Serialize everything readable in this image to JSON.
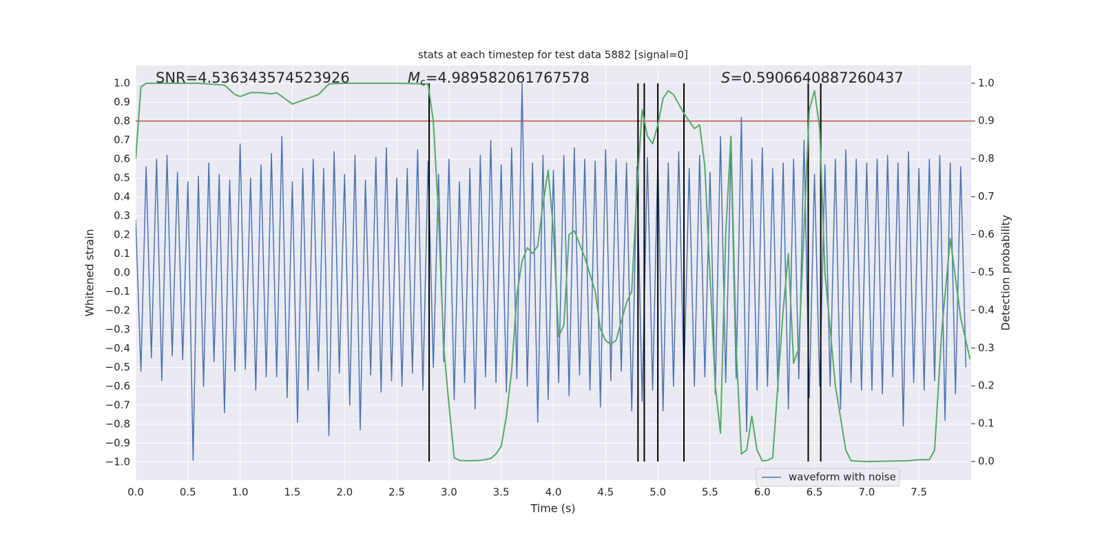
{
  "chart_data": {
    "type": "line",
    "title": "stats at each timestep for test data 5882 [signal=0]",
    "xlabel": "Time (s)",
    "ylabel": "Whitened strain",
    "y2label": "Detection probability",
    "annotations": [
      {
        "text": "SNR=4.536343574523926"
      },
      {
        "symbol": "M",
        "subscript": "c",
        "text": "=4.989582061767578"
      },
      {
        "symbol": "S",
        "text": "=0.5906640887260437"
      }
    ],
    "xlim": [
      0,
      8.0
    ],
    "ylim": [
      -1.095,
      1.095
    ],
    "y2lim": [
      -0.049,
      1.047
    ],
    "xticks": [
      {
        "value": 0,
        "label": "0.0"
      },
      0.5,
      {
        "value": 1,
        "label": "1.0"
      },
      1.5,
      {
        "value": 2,
        "label": "2.0"
      },
      2.5,
      {
        "value": 3,
        "label": "3.0"
      },
      3.5,
      {
        "value": 4,
        "label": "4.0"
      },
      4.5,
      {
        "value": 5,
        "label": "5.0"
      },
      5.5,
      {
        "value": 6,
        "label": "6.0"
      },
      6.5,
      {
        "value": 7,
        "label": "7.0"
      },
      7.5
    ],
    "yticks": [
      {
        "value": -1,
        "label": "−1.0"
      },
      {
        "value": -0.9,
        "label": "−0.9"
      },
      {
        "value": -0.8,
        "label": "−0.8"
      },
      {
        "value": -0.7,
        "label": "−0.7"
      },
      {
        "value": -0.6,
        "label": "−0.6"
      },
      {
        "value": -0.5,
        "label": "−0.5"
      },
      {
        "value": -0.4,
        "label": "−0.4"
      },
      {
        "value": -0.3,
        "label": "−0.3"
      },
      {
        "value": -0.2,
        "label": "−0.2"
      },
      {
        "value": -0.1,
        "label": "−0.1"
      },
      {
        "value": 0,
        "label": "0.0"
      },
      0.1,
      0.2,
      0.3,
      0.4,
      0.5,
      0.6,
      0.7,
      0.8,
      0.9,
      {
        "value": 1,
        "label": "1.0"
      }
    ],
    "y2ticks": [
      {
        "value": 0,
        "label": "0.0"
      },
      0.1,
      0.2,
      0.3,
      0.4,
      0.5,
      0.6,
      0.7,
      0.8,
      0.9,
      {
        "value": 1,
        "label": "1.0"
      }
    ],
    "grid": true,
    "legend": "lower right",
    "hline": {
      "value": 0.9,
      "axis": "y2",
      "color": "#c44e52"
    },
    "vlines": {
      "values": [
        2.81,
        4.81,
        4.87,
        5.0,
        5.25,
        6.44,
        6.56
      ],
      "color": "#000000"
    },
    "series": [
      {
        "name": "waveform with noise",
        "color": "#4c72b0",
        "axis": "y",
        "x": [
          0,
          0.05,
          0.1,
          0.15,
          0.2,
          0.25,
          0.3,
          0.35,
          0.4,
          0.45,
          0.5,
          0.55,
          0.6,
          0.65,
          0.7,
          0.75,
          0.8,
          0.85,
          0.9,
          0.95,
          1,
          1.05,
          1.1,
          1.15,
          1.2,
          1.25,
          1.3,
          1.35,
          1.4,
          1.45,
          1.5,
          1.55,
          1.6,
          1.65,
          1.7,
          1.75,
          1.8,
          1.85,
          1.9,
          1.95,
          2,
          2.05,
          2.1,
          2.15,
          2.2,
          2.25,
          2.3,
          2.35,
          2.4,
          2.45,
          2.5,
          2.55,
          2.6,
          2.65,
          2.7,
          2.75,
          2.8,
          2.85,
          2.9,
          2.95,
          3,
          3.05,
          3.1,
          3.15,
          3.2,
          3.25,
          3.3,
          3.35,
          3.4,
          3.45,
          3.5,
          3.55,
          3.6,
          3.65,
          3.7,
          3.75,
          3.8,
          3.85,
          3.9,
          3.95,
          4,
          4.05,
          4.1,
          4.15,
          4.2,
          4.25,
          4.3,
          4.35,
          4.4,
          4.45,
          4.5,
          4.55,
          4.6,
          4.65,
          4.7,
          4.75,
          4.8,
          4.85,
          4.9,
          4.95,
          5,
          5.05,
          5.1,
          5.15,
          5.2,
          5.25,
          5.3,
          5.35,
          5.4,
          5.45,
          5.5,
          5.55,
          5.6,
          5.65,
          5.7,
          5.75,
          5.8,
          5.85,
          5.9,
          5.95,
          6,
          6.05,
          6.1,
          6.15,
          6.2,
          6.25,
          6.3,
          6.35,
          6.4,
          6.45,
          6.5,
          6.55,
          6.6,
          6.65,
          6.7,
          6.75,
          6.8,
          6.85,
          6.9,
          6.95,
          7,
          7.05,
          7.1,
          7.15,
          7.2,
          7.25,
          7.3,
          7.35,
          7.4,
          7.45,
          7.5,
          7.55,
          7.6,
          7.65,
          7.7,
          7.75,
          7.8,
          7.85,
          7.9,
          7.95
        ],
        "values": [
          0.28,
          -0.52,
          0.56,
          -0.45,
          0.6,
          -0.57,
          0.62,
          -0.44,
          0.53,
          -0.46,
          0.48,
          -0.99,
          0.51,
          -0.6,
          0.58,
          -0.47,
          0.52,
          -0.74,
          0.49,
          -0.52,
          0.68,
          -0.51,
          0.5,
          -0.62,
          0.57,
          -0.55,
          0.63,
          -0.55,
          0.72,
          -0.66,
          0.48,
          -0.79,
          0.55,
          -0.62,
          0.6,
          -0.52,
          0.55,
          -0.86,
          0.64,
          -0.53,
          0.52,
          -0.7,
          0.62,
          -0.83,
          0.49,
          -0.54,
          0.61,
          -0.63,
          0.66,
          -0.57,
          0.5,
          -0.6,
          0.55,
          -0.53,
          0.65,
          -0.62,
          0.59,
          -0.5,
          0.52,
          -0.47,
          0.6,
          -0.67,
          0.48,
          -0.58,
          0.55,
          -0.72,
          0.62,
          -0.55,
          0.7,
          -0.58,
          0.57,
          -0.63,
          0.66,
          -0.56,
          1.0,
          -0.6,
          0.58,
          -0.79,
          0.62,
          -0.67,
          0.54,
          -0.58,
          0.62,
          -0.65,
          0.66,
          -0.54,
          0.6,
          -0.62,
          0.59,
          -0.71,
          0.65,
          -0.57,
          0.6,
          -0.52,
          0.58,
          -0.73,
          0.56,
          -0.68,
          0.61,
          -0.62,
          0.6,
          -0.73,
          0.58,
          -0.6,
          0.64,
          -0.57,
          0.55,
          -0.6,
          0.62,
          -0.55,
          0.53,
          -0.64,
          0.72,
          -0.58,
          0.65,
          -0.56,
          0.82,
          -0.84,
          0.6,
          -0.62,
          0.66,
          -0.6,
          0.55,
          -0.63,
          0.58,
          -0.72,
          0.6,
          -0.56,
          0.7,
          -0.66,
          0.52,
          -0.6,
          0.57,
          -0.6,
          0.6,
          -0.72,
          0.65,
          -0.58,
          0.6,
          -0.62,
          0.58,
          -0.62,
          0.6,
          -0.64,
          0.62,
          -0.55,
          0.58,
          -0.81,
          0.64,
          -0.58,
          0.55,
          -0.62,
          0.6,
          -0.57,
          0.62,
          -0.78,
          0.58,
          -0.64,
          0.56,
          -0.5
        ]
      },
      {
        "color": "#55a868",
        "axis": "y2",
        "x": [
          0,
          0.05,
          0.1,
          0.3,
          0.6,
          0.85,
          0.95,
          1,
          1.1,
          1.2,
          1.3,
          1.35,
          1.45,
          1.5,
          1.6,
          1.75,
          1.85,
          2,
          2.5,
          2.8,
          2.85,
          2.9,
          2.95,
          3,
          3.05,
          3.1,
          3.2,
          3.3,
          3.4,
          3.45,
          3.5,
          3.55,
          3.6,
          3.65,
          3.7,
          3.75,
          3.8,
          3.85,
          3.9,
          3.95,
          4,
          4.05,
          4.1,
          4.15,
          4.2,
          4.3,
          4.4,
          4.45,
          4.5,
          4.55,
          4.6,
          4.7,
          4.75,
          4.8,
          4.85,
          4.9,
          4.95,
          5,
          5.05,
          5.1,
          5.15,
          5.25,
          5.35,
          5.4,
          5.45,
          5.55,
          5.6,
          5.65,
          5.7,
          5.75,
          5.8,
          5.85,
          5.9,
          5.95,
          6,
          6.05,
          6.1,
          6.2,
          6.25,
          6.3,
          6.35,
          6.45,
          6.5,
          6.55,
          6.6,
          6.7,
          6.8,
          6.85,
          6.9,
          7,
          7.4,
          7.5,
          7.6,
          7.65,
          7.72,
          7.8,
          7.9,
          7.99
        ],
        "values": [
          0.8,
          0.99,
          1.0,
          1.0,
          1.0,
          0.995,
          0.97,
          0.965,
          0.975,
          0.975,
          0.972,
          0.975,
          0.955,
          0.945,
          0.955,
          0.97,
          0.998,
          1.0,
          1.0,
          0.998,
          0.9,
          0.65,
          0.3,
          0.15,
          0.01,
          0.003,
          0.002,
          0.003,
          0.008,
          0.02,
          0.04,
          0.12,
          0.24,
          0.44,
          0.53,
          0.565,
          0.55,
          0.57,
          0.68,
          0.77,
          0.61,
          0.33,
          0.36,
          0.6,
          0.61,
          0.54,
          0.45,
          0.35,
          0.32,
          0.31,
          0.32,
          0.42,
          0.45,
          0.72,
          0.93,
          0.86,
          0.84,
          0.89,
          0.96,
          0.98,
          0.97,
          0.92,
          0.88,
          0.89,
          0.78,
          0.2,
          0.075,
          0.6,
          0.86,
          0.3,
          0.02,
          0.03,
          0.12,
          0.03,
          0.002,
          0.003,
          0.01,
          0.4,
          0.55,
          0.26,
          0.3,
          0.93,
          0.98,
          0.88,
          0.5,
          0.2,
          0.03,
          0.002,
          0.001,
          0.0,
          0.002,
          0.005,
          0.005,
          0.03,
          0.35,
          0.59,
          0.38,
          0.27
        ]
      }
    ]
  }
}
